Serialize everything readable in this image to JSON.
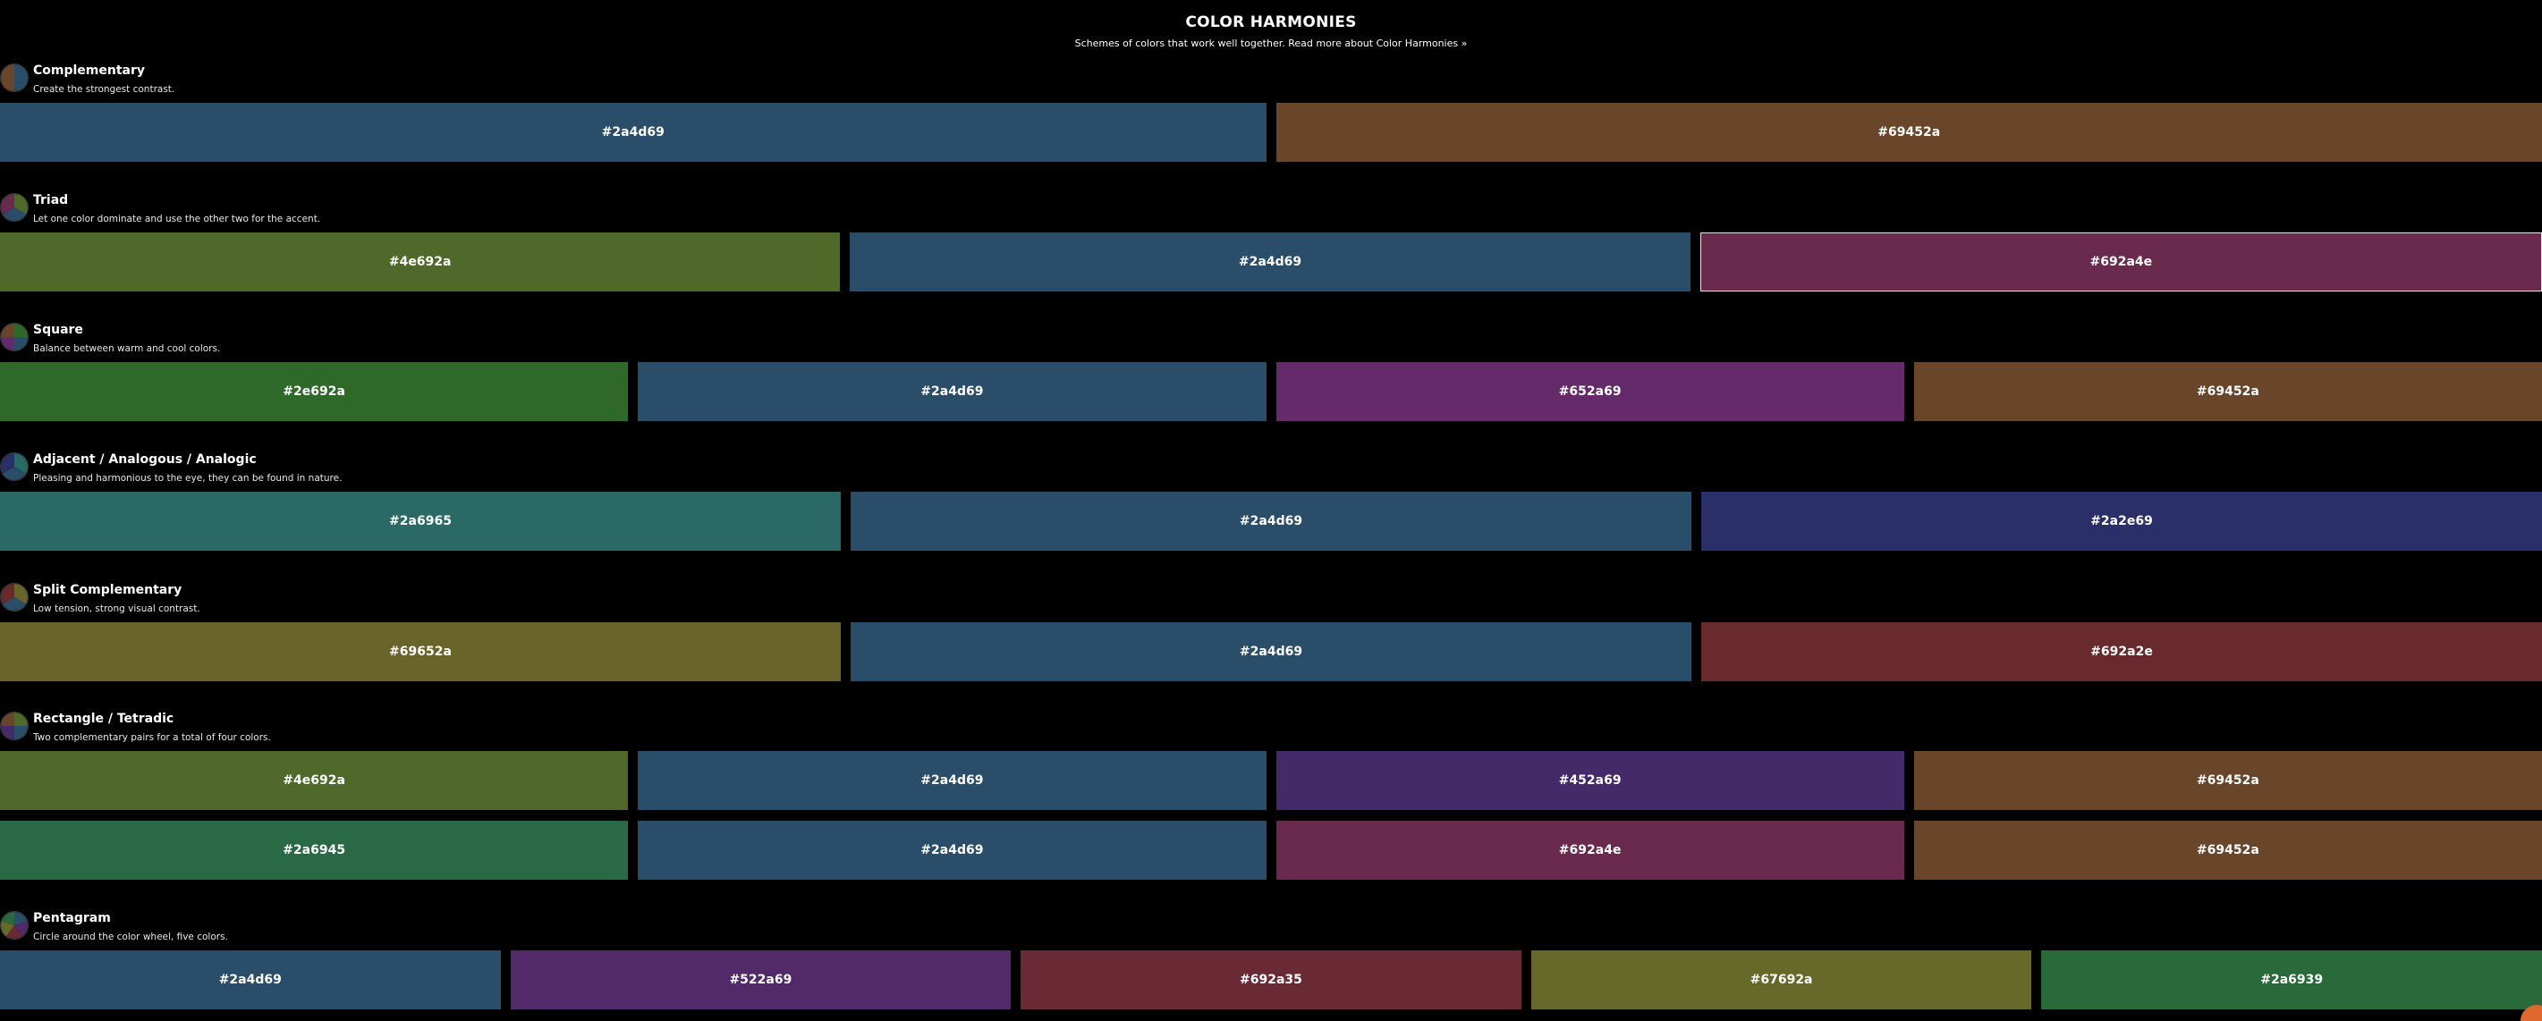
{
  "header": {
    "title": "COLOR HARMONIES",
    "subtitle": "Schemes of colors that work well together. Read more about Color Harmonies »"
  },
  "sections": [
    {
      "id": "complementary",
      "title": "Complementary",
      "description": "Create the strongest contrast.",
      "wheel_colors": [
        "#2a4d69",
        "#69452a"
      ],
      "rows": [
        [
          "#2a4d69",
          "#69452a"
        ]
      ]
    },
    {
      "id": "triad",
      "title": "Triad",
      "description": "Let one color dominate and use the other two for the accent.",
      "wheel_colors": [
        "#4e692a",
        "#2a4d69",
        "#692a4e"
      ],
      "rows": [
        [
          "#4e692a",
          "#2a4d69",
          "#692a4e"
        ]
      ]
    },
    {
      "id": "square",
      "title": "Square",
      "description": "Balance between warm and cool colors.",
      "wheel_colors": [
        "#2e692a",
        "#2a4d69",
        "#652a69",
        "#69452a"
      ],
      "rows": [
        [
          "#2e692a",
          "#2a4d69",
          "#652a69",
          "#69452a"
        ]
      ]
    },
    {
      "id": "adjacent",
      "title": "Adjacent / Analogous / Analogic",
      "description": "Pleasing and harmonious to the eye, they can be found in nature.",
      "wheel_colors": [
        "#2a6965",
        "#2a4d69",
        "#2a2e69"
      ],
      "rows": [
        [
          "#2a6965",
          "#2a4d69",
          "#2a2e69"
        ]
      ]
    },
    {
      "id": "split-complementary",
      "title": "Split Complementary",
      "description": "Low tension, strong visual contrast.",
      "wheel_colors": [
        "#69652a",
        "#2a4d69",
        "#692a2e"
      ],
      "rows": [
        [
          "#69652a",
          "#2a4d69",
          "#692a2e"
        ]
      ]
    },
    {
      "id": "rectangle",
      "title": "Rectangle / Tetradic",
      "description": "Two complementary pairs for a total of four colors.",
      "wheel_colors": [
        "#4e692a",
        "#2a4d69",
        "#452a69",
        "#69452a"
      ],
      "rows": [
        [
          "#4e692a",
          "#2a4d69",
          "#452a69",
          "#69452a"
        ],
        [
          "#2a6945",
          "#2a4d69",
          "#692a4e",
          "#69452a"
        ]
      ]
    },
    {
      "id": "pentagram",
      "title": "Pentagram",
      "description": "Circle around the color wheel, five colors.",
      "wheel_colors": [
        "#2a4d69",
        "#522a69",
        "#692a35",
        "#67692a",
        "#2a6939"
      ],
      "rows": [
        [
          "#2a4d69",
          "#522a69",
          "#692a35",
          "#67692a",
          "#2a6939"
        ]
      ]
    }
  ],
  "selected": {
    "section": "triad",
    "row": 0,
    "index": 2
  },
  "colors": {
    "background": "#000000",
    "text": "#ffffff",
    "badge": "#e0682f"
  }
}
